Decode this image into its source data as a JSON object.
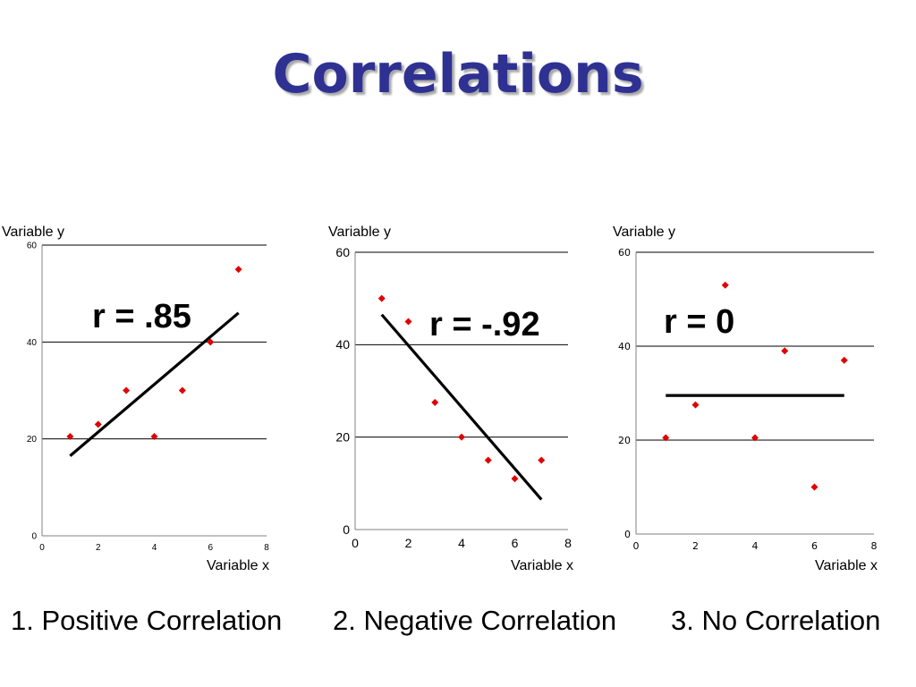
{
  "title": "Correlations",
  "chart_data": [
    {
      "type": "scatter",
      "ylabel": "Variable y",
      "xlabel": "Variable x",
      "xlim": [
        0,
        8
      ],
      "ylim": [
        0,
        60
      ],
      "x_ticks": [
        0,
        2,
        4,
        6,
        8
      ],
      "y_ticks": [
        0,
        20,
        40,
        60
      ],
      "grid": "horizontal",
      "points": [
        [
          1,
          20.5
        ],
        [
          2,
          23
        ],
        [
          3,
          30
        ],
        [
          4,
          20.5
        ],
        [
          5,
          30
        ],
        [
          6,
          40
        ],
        [
          7,
          55
        ]
      ],
      "trendline": [
        [
          1,
          16.5
        ],
        [
          7,
          46
        ]
      ],
      "annotation": "r = .85",
      "point_color": "#e00000",
      "caption": "1. Positive Correlation"
    },
    {
      "type": "scatter",
      "ylabel": "Variable y",
      "xlabel": "Variable x",
      "xlim": [
        0,
        8
      ],
      "ylim": [
        0,
        60
      ],
      "x_ticks": [
        0,
        2,
        4,
        6,
        8
      ],
      "y_ticks": [
        0,
        20,
        40,
        60
      ],
      "grid": "horizontal",
      "points": [
        [
          1,
          50
        ],
        [
          2,
          45
        ],
        [
          3,
          27.5
        ],
        [
          4,
          20
        ],
        [
          5,
          15
        ],
        [
          6,
          11
        ],
        [
          7,
          15
        ]
      ],
      "trendline": [
        [
          1,
          46.5
        ],
        [
          7,
          6.5
        ]
      ],
      "annotation": "r = -.92",
      "point_color": "#e00000",
      "caption": "2. Negative Correlation"
    },
    {
      "type": "scatter",
      "ylabel": "Variable y",
      "xlabel": "Variable x",
      "xlim": [
        0,
        8
      ],
      "ylim": [
        0,
        60
      ],
      "x_ticks": [
        0,
        2,
        4,
        6,
        8
      ],
      "y_ticks": [
        0,
        20,
        40,
        60
      ],
      "grid": "horizontal",
      "points": [
        [
          1,
          20.5
        ],
        [
          2,
          27.5
        ],
        [
          3,
          53
        ],
        [
          4,
          20.5
        ],
        [
          5,
          39
        ],
        [
          6,
          10
        ],
        [
          7,
          37
        ]
      ],
      "trendline": [
        [
          1,
          29.5
        ],
        [
          7,
          29.5
        ]
      ],
      "annotation": "r = 0",
      "point_color": "#e00000",
      "caption": "3. No Correlation"
    }
  ]
}
